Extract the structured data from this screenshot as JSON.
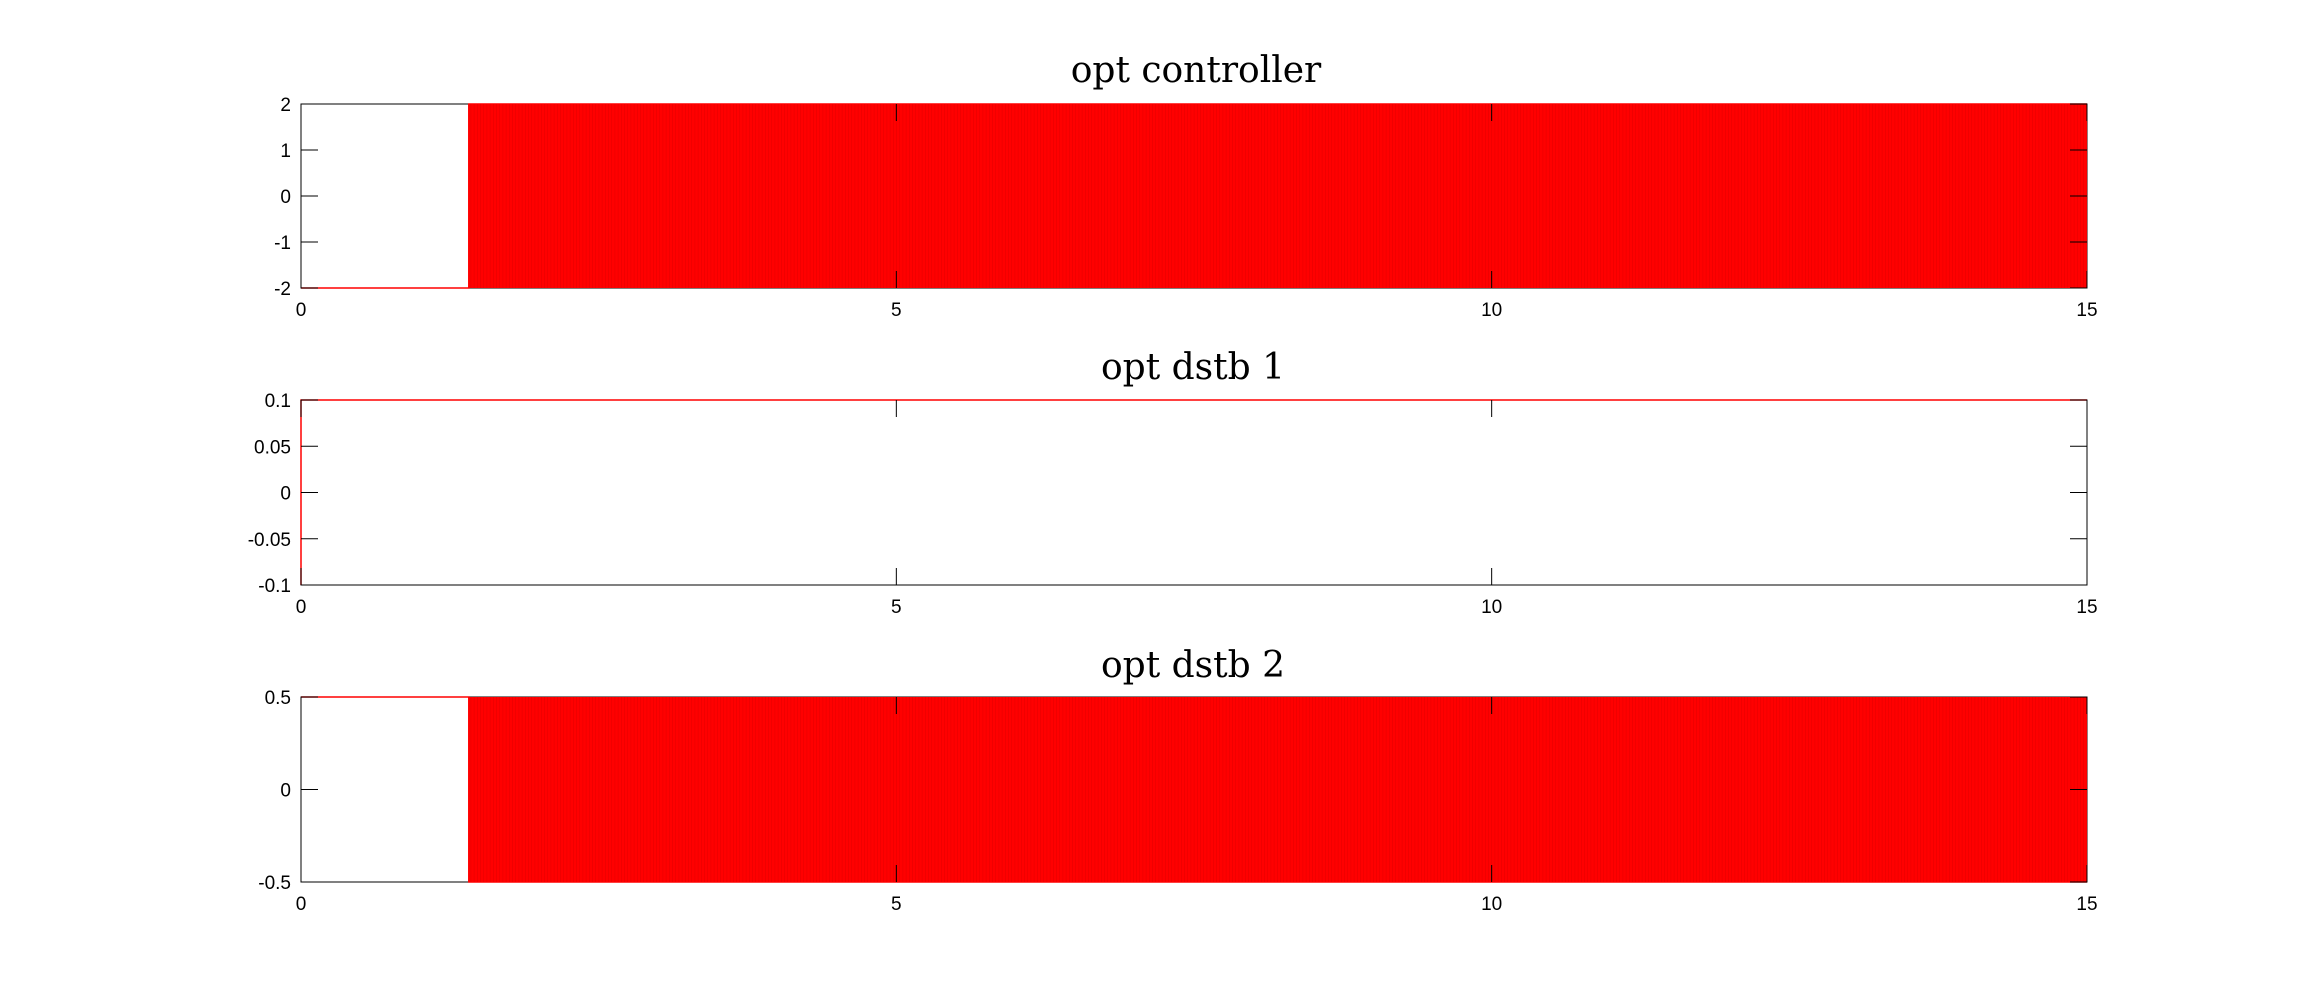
{
  "chart_data": [
    {
      "type": "line",
      "title": "opt controller",
      "xlabel": "",
      "ylabel": "",
      "xlim": [
        0,
        15
      ],
      "ylim": [
        -2,
        2
      ],
      "xticks": [
        "0",
        "5",
        "10",
        "15"
      ],
      "yticks": [
        "2",
        "1",
        "0",
        "-1",
        "-2"
      ],
      "series": [
        {
          "color": "#ff0000",
          "behavior": "bang-bang switching between -2 and 2",
          "x": [
            0,
            1.41,
            1.41,
            15
          ],
          "y": [
            -2,
            -2,
            2,
            2
          ],
          "switch_start": 1.41,
          "switch_end": 15,
          "low": -2,
          "high": 2
        }
      ],
      "grid": false
    },
    {
      "type": "line",
      "title": "opt dstb 1",
      "xlabel": "",
      "ylabel": "",
      "xlim": [
        0,
        15
      ],
      "ylim": [
        -0.1,
        0.1
      ],
      "xticks": [
        "0",
        "5",
        "10",
        "15"
      ],
      "yticks": [
        "0.1",
        "0.05",
        "0",
        "-0.05",
        "-0.1"
      ],
      "series": [
        {
          "color": "#ff0000",
          "x": [
            0,
            0,
            15
          ],
          "y": [
            -0.1,
            0.1,
            0.1
          ]
        }
      ],
      "grid": false
    },
    {
      "type": "line",
      "title": "opt dstb 2",
      "xlabel": "",
      "ylabel": "",
      "xlim": [
        0,
        15
      ],
      "ylim": [
        -0.5,
        0.5
      ],
      "xticks": [
        "0",
        "5",
        "10",
        "15"
      ],
      "yticks": [
        "0.5",
        "0",
        "-0.5"
      ],
      "series": [
        {
          "color": "#ff0000",
          "behavior": "bang-bang switching between -0.5 and 0.5",
          "x": [
            0,
            1.41,
            1.41,
            15
          ],
          "y": [
            0.5,
            0.5,
            -0.5,
            -0.5
          ],
          "switch_start": 1.41,
          "switch_end": 15,
          "low": -0.5,
          "high": 0.5
        }
      ],
      "grid": false
    }
  ]
}
